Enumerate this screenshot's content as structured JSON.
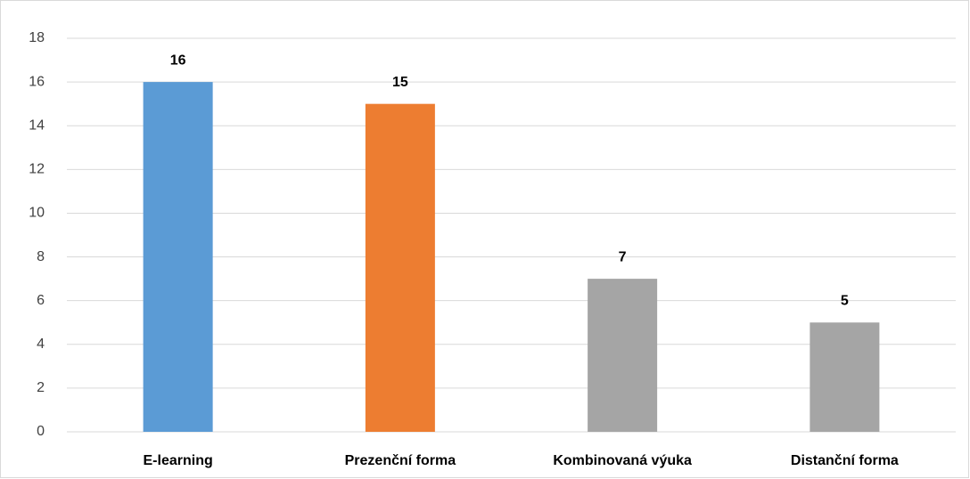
{
  "chart_data": {
    "type": "bar",
    "categories": [
      "E-learning",
      "Prezenční forma",
      "Kombinovaná výuka",
      "Distanční forma"
    ],
    "values": [
      16,
      15,
      7,
      5
    ],
    "colors": [
      "#5b9bd5",
      "#ed7d31",
      "#a5a5a5",
      "#a5a5a5"
    ],
    "ylim": [
      0,
      18
    ],
    "yticks": [
      0,
      2,
      4,
      6,
      8,
      10,
      12,
      14,
      16,
      18
    ],
    "grid": true
  }
}
